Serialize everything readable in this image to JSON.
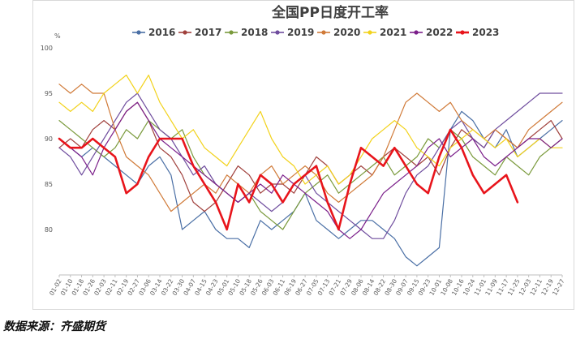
{
  "chart_data": {
    "type": "line",
    "title": "全国PP日度开工率",
    "unit": "%",
    "ylim": [
      75,
      100
    ],
    "yticks": [
      80,
      85,
      90,
      95,
      100
    ],
    "grid": false,
    "legend_position": "top",
    "x": [
      "01-02",
      "01-10",
      "01-18",
      "01-26",
      "02-03",
      "02-11",
      "02-19",
      "02-27",
      "03-06",
      "03-14",
      "03-22",
      "03-30",
      "04-07",
      "04-15",
      "04-23",
      "05-01",
      "05-10",
      "05-18",
      "05-26",
      "06-03",
      "06-11",
      "06-19",
      "06-27",
      "07-05",
      "07-13",
      "07-21",
      "07-29",
      "08-06",
      "08-14",
      "08-22",
      "08-30",
      "09-07",
      "09-15",
      "09-23",
      "10-01",
      "10-08",
      "10-16",
      "10-24",
      "11-01",
      "11-09",
      "11-17",
      "11-25",
      "12-03",
      "12-11",
      "12-19",
      "12-27"
    ],
    "series": [
      {
        "name": "2016",
        "color": "#4a6fa5",
        "width": 1.2,
        "values": [
          90,
          89,
          88,
          89,
          88,
          87,
          86,
          85,
          87,
          88,
          86,
          80,
          81,
          82,
          80,
          79,
          79,
          78,
          81,
          80,
          81,
          82,
          84,
          81,
          80,
          79,
          80,
          81,
          81,
          80,
          79,
          77,
          76,
          77,
          78,
          91,
          93,
          92,
          90,
          89,
          91,
          88,
          89,
          90,
          91,
          92
        ]
      },
      {
        "name": "2017",
        "color": "#a0403c",
        "width": 1.2,
        "values": [
          89,
          90,
          89,
          91,
          92,
          91,
          93,
          94,
          92,
          89,
          88,
          86,
          83,
          82,
          83,
          85,
          87,
          86,
          84,
          85,
          85,
          84,
          86,
          88,
          87,
          85,
          86,
          87,
          86,
          88,
          89,
          88,
          87,
          88,
          86,
          89,
          91,
          90,
          89,
          91,
          90,
          89,
          90,
          91,
          92,
          90
        ]
      },
      {
        "name": "2018",
        "color": "#7a9a3c",
        "width": 1.2,
        "values": [
          92,
          91,
          90,
          89,
          88,
          89,
          91,
          90,
          92,
          91,
          90,
          91,
          88,
          86,
          85,
          84,
          83,
          84,
          82,
          81,
          80,
          82,
          84,
          85,
          86,
          84,
          85,
          86,
          87,
          88,
          86,
          87,
          88,
          90,
          89,
          91,
          90,
          88,
          87,
          86,
          88,
          87,
          86,
          88,
          89,
          90
        ]
      },
      {
        "name": "2019",
        "color": "#6f4d9e",
        "width": 1.2,
        "values": [
          89,
          88,
          86,
          88,
          90,
          92,
          94,
          95,
          93,
          91,
          90,
          88,
          86,
          87,
          85,
          84,
          83,
          84,
          83,
          82,
          83,
          85,
          86,
          84,
          83,
          82,
          81,
          80,
          79,
          79,
          81,
          84,
          86,
          87,
          89,
          91,
          92,
          90,
          89,
          91,
          92,
          93,
          94,
          95,
          95,
          95
        ]
      },
      {
        "name": "2020",
        "color": "#d07a38",
        "width": 1.2,
        "values": [
          96,
          95,
          96,
          95,
          95,
          91,
          88,
          87,
          86,
          84,
          82,
          83,
          84,
          85,
          84,
          86,
          85,
          84,
          86,
          87,
          85,
          86,
          87,
          86,
          84,
          83,
          84,
          85,
          86,
          88,
          91,
          94,
          95,
          94,
          93,
          94,
          92,
          91,
          90,
          91,
          90,
          89,
          91,
          92,
          93,
          94
        ]
      },
      {
        "name": "2021",
        "color": "#f2d21b",
        "width": 1.2,
        "values": [
          94,
          93,
          94,
          93,
          95,
          96,
          97,
          95,
          97,
          94,
          92,
          90,
          91,
          89,
          88,
          87,
          89,
          91,
          93,
          90,
          88,
          87,
          85,
          86,
          87,
          85,
          86,
          88,
          90,
          91,
          92,
          91,
          89,
          88,
          87,
          89,
          90,
          91,
          90,
          89,
          90,
          88,
          89,
          90,
          89,
          89
        ]
      },
      {
        "name": "2022",
        "color": "#7b1f8a",
        "width": 1.2,
        "values": [
          90,
          89,
          88,
          86,
          89,
          91,
          93,
          94,
          92,
          90,
          89,
          88,
          87,
          86,
          85,
          84,
          83,
          84,
          85,
          84,
          86,
          85,
          84,
          83,
          82,
          80,
          79,
          80,
          82,
          84,
          85,
          86,
          87,
          89,
          90,
          88,
          89,
          90,
          88,
          87,
          88,
          89,
          90,
          90,
          89,
          90
        ]
      },
      {
        "name": "2023",
        "color": "#e8141b",
        "width": 2.6,
        "values": [
          90,
          89,
          89,
          90,
          89,
          88,
          84,
          85,
          88,
          90,
          90,
          90,
          87,
          85,
          83,
          80,
          85,
          83,
          86,
          85,
          83,
          85,
          86,
          87,
          83,
          80,
          85,
          89,
          88,
          87,
          89,
          87,
          85,
          84,
          88,
          91,
          89,
          86,
          84,
          85,
          86,
          83,
          null,
          null,
          null,
          null
        ]
      }
    ]
  },
  "source_text": "数据来源：齐盛期货"
}
